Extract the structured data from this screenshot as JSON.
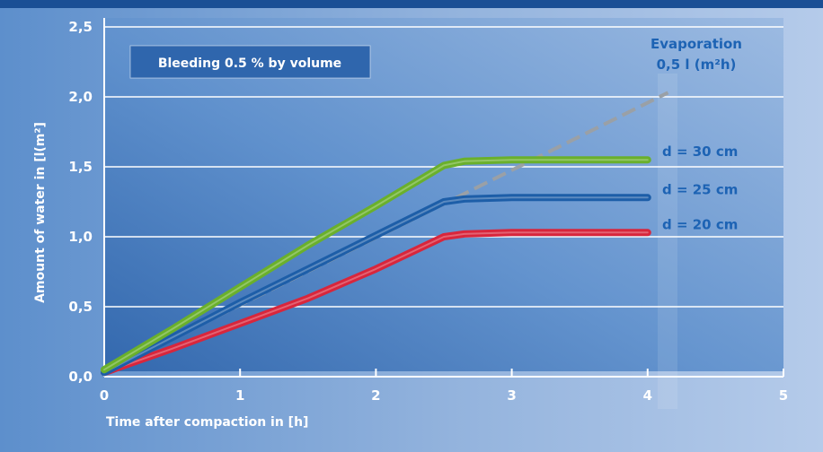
{
  "chart_data": {
    "type": "line",
    "xlabel": "Time after compaction in [h]",
    "ylabel": "Amount of water in [l(m²]",
    "xlim": [
      0,
      5
    ],
    "ylim": [
      0,
      2.5
    ],
    "x_ticks": [
      "0",
      "1",
      "2",
      "3",
      "4",
      "5"
    ],
    "y_ticks": [
      "0,0",
      "0,5",
      "1,0",
      "1,5",
      "2,0",
      "2,5"
    ],
    "grid": "horizontal",
    "info_box": "Bleeding 0.5 % by volume",
    "series": [
      {
        "name": "d = 30 cm",
        "color": "#6ab02c",
        "style": "solid",
        "x": [
          0,
          0.5,
          1,
          1.5,
          2,
          2.5,
          2.65,
          3,
          3.5,
          4
        ],
        "y": [
          0.05,
          0.34,
          0.64,
          0.94,
          1.22,
          1.51,
          1.54,
          1.55,
          1.55,
          1.55
        ]
      },
      {
        "name": "d = 25 cm",
        "color": "#1d5ea8",
        "style": "solid",
        "x": [
          0,
          0.5,
          1,
          1.5,
          2,
          2.5,
          2.65,
          3,
          3.5,
          4
        ],
        "y": [
          0.03,
          0.28,
          0.53,
          0.77,
          1.01,
          1.25,
          1.27,
          1.28,
          1.28,
          1.28
        ]
      },
      {
        "name": "d = 20 cm",
        "color": "#d8263c",
        "style": "solid",
        "x": [
          0,
          0.5,
          1,
          1.5,
          2,
          2.5,
          2.65,
          3,
          3.5,
          4
        ],
        "y": [
          0.03,
          0.2,
          0.38,
          0.56,
          0.77,
          1.0,
          1.02,
          1.03,
          1.03,
          1.03
        ]
      },
      {
        "name": "Evaporation 0,5 l (m²h)",
        "label_lines": [
          "Evaporation",
          "0,5 l (m²h)"
        ],
        "color": "#9aa0a6",
        "style": "dashed",
        "x": [
          0,
          4.15
        ],
        "y": [
          0.03,
          2.03
        ]
      }
    ]
  }
}
